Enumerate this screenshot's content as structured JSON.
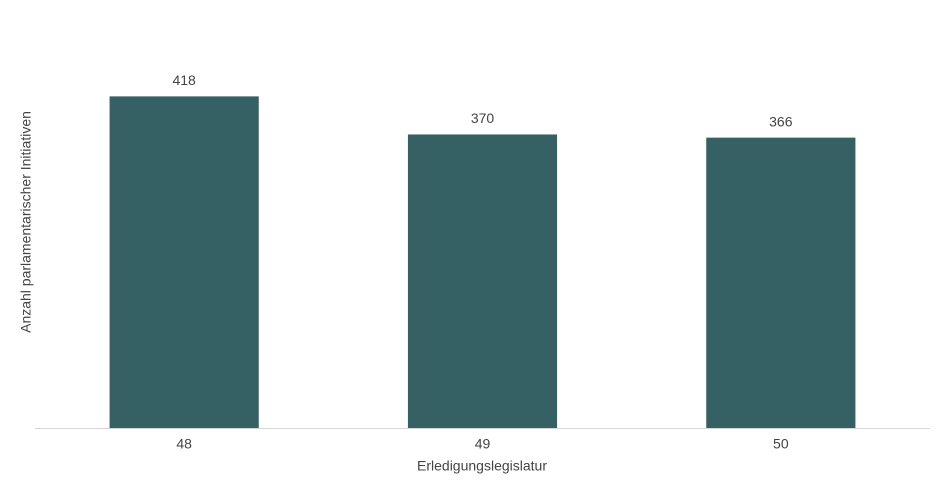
{
  "chart_data": {
    "type": "bar",
    "x_label": "Erledigungslegislatur",
    "y_label": "Anzahl parlamentarischer Initiativen",
    "categories": [
      "48",
      "49",
      "50"
    ],
    "values": [
      418,
      370,
      366
    ],
    "color": "#356064",
    "ylim": [
      0,
      450
    ],
    "grid": false
  }
}
